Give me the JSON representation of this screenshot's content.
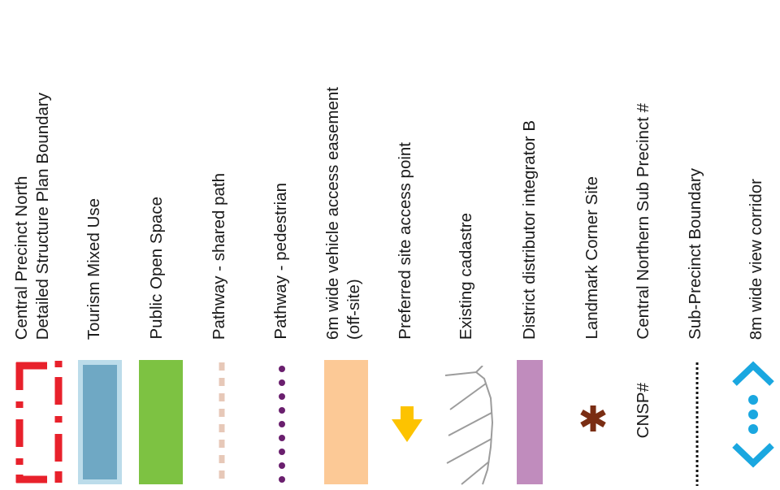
{
  "legend": {
    "items": [
      {
        "label_line1": "Central Precinct North",
        "label_line2": "Detailed Structure Plan Boundary",
        "color": "#e8212b"
      },
      {
        "label_line1": "Tourism Mixed Use",
        "color_fill": "#6fa8c4",
        "color_border": "#bcdcea"
      },
      {
        "label_line1": "Public Open Space",
        "color": "#7dc242"
      },
      {
        "label_line1": "Pathway - shared path",
        "color": "#e7c8b8"
      },
      {
        "label_line1": "Pathway - pedestrian",
        "color": "#6a1f6e"
      },
      {
        "label_line1": "6m wide vehicle access easement",
        "label_line2": "(off-site)",
        "color": "#fcc996"
      },
      {
        "label_line1": "Preferred site access point",
        "color": "#fdc300"
      },
      {
        "label_line1": "Existing cadastre",
        "color": "#9c9c9c"
      },
      {
        "label_line1": "District distributor integrator B",
        "color": "#c08cbd"
      },
      {
        "label_line1": "Landmark Corner Site",
        "symbol": "*",
        "color": "#7a2d13"
      },
      {
        "label_line1": "Central Northern Sub Precinct #",
        "symbol": "CNSP#"
      },
      {
        "label_line1": "Sub-Precinct Boundary",
        "color": "#111111"
      },
      {
        "label_line1": "8m wide view corridor",
        "color": "#1aa7e0"
      }
    ]
  }
}
